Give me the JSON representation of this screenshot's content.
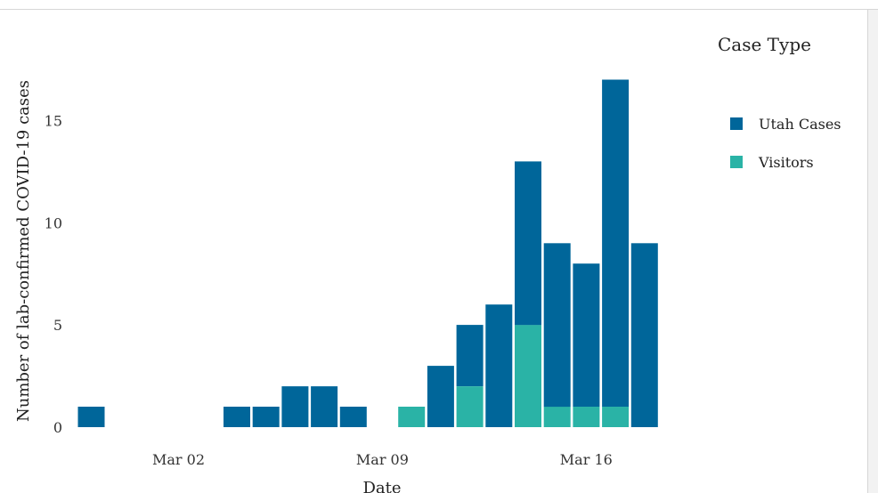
{
  "chart_data": {
    "type": "bar",
    "stacked": true,
    "x_type": "date",
    "categories": [
      "2020-02-28",
      "2020-02-29",
      "2020-03-01",
      "2020-03-02",
      "2020-03-03",
      "2020-03-04",
      "2020-03-05",
      "2020-03-06",
      "2020-03-07",
      "2020-03-08",
      "2020-03-09",
      "2020-03-10",
      "2020-03-11",
      "2020-03-12",
      "2020-03-13",
      "2020-03-14",
      "2020-03-15",
      "2020-03-16",
      "2020-03-17",
      "2020-03-18",
      "2020-03-19"
    ],
    "series": [
      {
        "name": "Visitors",
        "color": "#2ab3a6",
        "values": [
          0,
          0,
          0,
          0,
          0,
          0,
          0,
          0,
          0,
          0,
          0,
          1,
          0,
          2,
          0,
          5,
          1,
          1,
          1,
          0,
          0
        ]
      },
      {
        "name": "Utah Cases",
        "color": "#00669a",
        "values": [
          1,
          0,
          0,
          0,
          0,
          1,
          1,
          2,
          2,
          1,
          0,
          0,
          3,
          3,
          6,
          8,
          8,
          7,
          16,
          9,
          0
        ]
      }
    ],
    "xlabel": "Date",
    "ylabel": "Number of lab-confirmed COVID-19 cases",
    "ylim": [
      0,
      17.5
    ],
    "yticks": [
      0,
      5,
      10,
      15
    ],
    "xtick_labels": [
      {
        "category": "2020-03-02",
        "label": "Mar 02"
      },
      {
        "category": "2020-03-09",
        "label": "Mar 09"
      },
      {
        "category": "2020-03-16",
        "label": "Mar 16"
      }
    ],
    "grid": false,
    "legend": {
      "title": "Case Type",
      "position": "right",
      "items": [
        {
          "label": "Utah Cases",
          "color": "#00669a"
        },
        {
          "label": "Visitors",
          "color": "#2ab3a6"
        }
      ]
    }
  }
}
